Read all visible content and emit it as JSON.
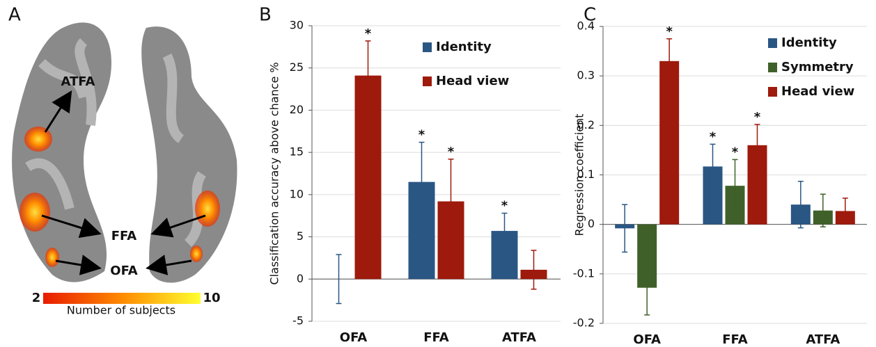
{
  "brain_panel": {
    "panel_label": "A",
    "regions": [
      "ATFA",
      "FFA",
      "OFA"
    ],
    "colorbar_min": 2,
    "colorbar_max": 10,
    "colorbar_label": "Number of subjects"
  },
  "chart_data": [
    {
      "type": "bar",
      "panel_label": "B",
      "y_label": "Classification accuracy above chance %",
      "categories": [
        "OFA",
        "FFA",
        "ATFA"
      ],
      "series": [
        {
          "name": "Identity",
          "color": "#2a5684",
          "values": [
            0,
            11.5,
            5.7
          ],
          "errors": [
            2.9,
            4.7,
            2.1
          ],
          "significance": [
            null,
            "*",
            "*"
          ]
        },
        {
          "name": "Head view",
          "color": "#9e1a0c",
          "values": [
            24.1,
            9.2,
            1.1
          ],
          "errors": [
            4.1,
            5.0,
            2.3
          ],
          "significance": [
            "*",
            "*",
            null
          ]
        }
      ],
      "ylim": [
        -5,
        30
      ],
      "yticks": [
        -5,
        0,
        5,
        10,
        15,
        20,
        25,
        30
      ],
      "grid": true
    },
    {
      "type": "bar",
      "panel_label": "C",
      "y_label": "Regression coefficient",
      "categories": [
        "OFA",
        "FFA",
        "ATFA"
      ],
      "series": [
        {
          "name": "Identity",
          "color": "#2a5684",
          "values": [
            -0.008,
            0.117,
            0.04
          ],
          "errors": [
            0.048,
            0.045,
            0.047
          ],
          "significance": [
            null,
            "*",
            null
          ]
        },
        {
          "name": "Symmetry",
          "color": "#3f6129",
          "values": [
            -0.128,
            0.078,
            0.028
          ],
          "errors": [
            0.055,
            0.053,
            0.033
          ],
          "significance": [
            null,
            "*",
            null
          ]
        },
        {
          "name": "Head view",
          "color": "#9e1a0c",
          "values": [
            0.33,
            0.16,
            0.027
          ],
          "errors": [
            0.045,
            0.042,
            0.026
          ],
          "significance": [
            "*",
            "*",
            null
          ]
        }
      ],
      "ylim": [
        -0.2,
        0.4
      ],
      "yticks": [
        -0.2,
        -0.1,
        0,
        0.1,
        0.2,
        0.3,
        0.4
      ],
      "grid": true
    }
  ]
}
